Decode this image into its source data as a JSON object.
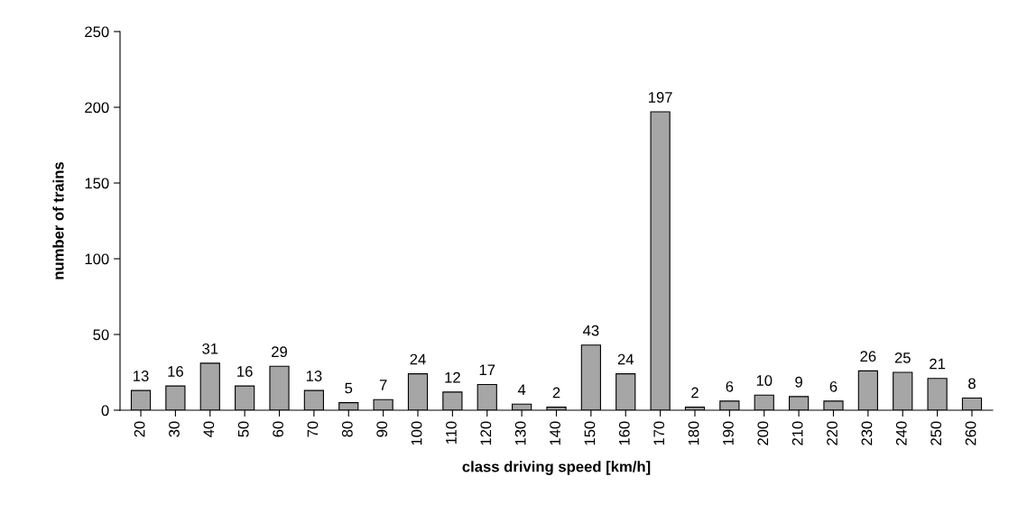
{
  "chart_data": {
    "type": "bar",
    "xlabel": "class driving speed [km/h]",
    "ylabel": "number of trains",
    "categories": [
      "20",
      "30",
      "40",
      "50",
      "60",
      "70",
      "80",
      "90",
      "100",
      "110",
      "120",
      "130",
      "140",
      "150",
      "160",
      "170",
      "180",
      "190",
      "200",
      "210",
      "220",
      "230",
      "240",
      "250",
      "260"
    ],
    "values": [
      13,
      16,
      31,
      16,
      29,
      13,
      5,
      7,
      24,
      12,
      17,
      4,
      2,
      43,
      24,
      197,
      2,
      6,
      10,
      9,
      6,
      26,
      25,
      21,
      8
    ],
    "color": "#a6a6a6",
    "ylim": [
      0,
      250
    ],
    "yticks": [
      0,
      50,
      100,
      150,
      200,
      250
    ],
    "data_labels": true,
    "grid": false,
    "legend": false
  }
}
